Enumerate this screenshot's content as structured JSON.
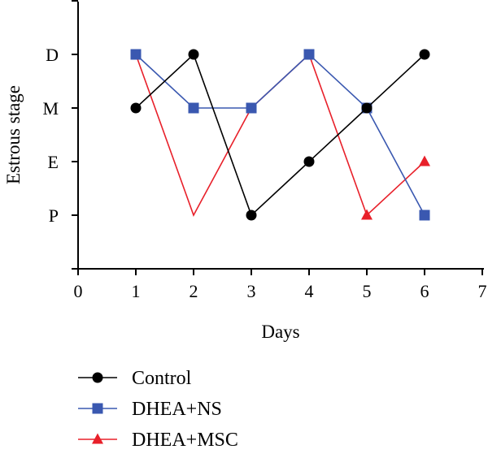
{
  "chart_data": {
    "type": "line",
    "xlabel": "Days",
    "ylabel": "Estrous stage",
    "xlim": [
      0,
      7
    ],
    "xticks": [
      "0",
      "1",
      "2",
      "3",
      "4",
      "5",
      "6",
      "7"
    ],
    "yticks": [
      "P",
      "E",
      "M",
      "D"
    ],
    "ylim": [
      0,
      5
    ],
    "x": [
      1,
      2,
      3,
      4,
      5,
      6
    ],
    "grid": false,
    "legend_placement": "bottom-left",
    "series": [
      {
        "name": "Control",
        "values": [
          3,
          4,
          1,
          2,
          3,
          4
        ],
        "marker": "circle",
        "color": "#000000",
        "marker_color": "#000000"
      },
      {
        "name": "DHEA+NS",
        "values": [
          4,
          3,
          3,
          4,
          3,
          1
        ],
        "marker": "square",
        "color": "#3a58b0",
        "marker_color": "#3a58b0"
      },
      {
        "name": "DHEA+MSC",
        "values": [
          4,
          1,
          3,
          4,
          1,
          2
        ],
        "marker": "triangle",
        "color": "#e8202a",
        "marker_color": "#e8202a",
        "hidden_markers": [
          0,
          1,
          2,
          3
        ]
      }
    ]
  }
}
